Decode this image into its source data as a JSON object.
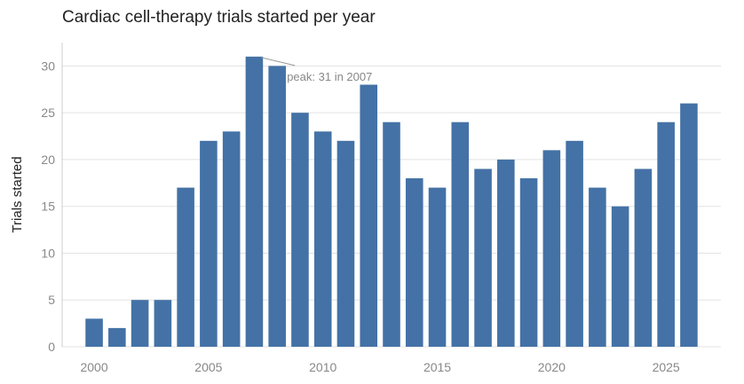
{
  "chart_data": {
    "type": "bar",
    "title": "Cardiac cell-therapy trials started per year",
    "xlabel": "",
    "ylabel": "Trials started",
    "x": [
      2000,
      2001,
      2002,
      2003,
      2004,
      2005,
      2006,
      2007,
      2008,
      2009,
      2010,
      2011,
      2012,
      2013,
      2014,
      2015,
      2016,
      2017,
      2018,
      2019,
      2020,
      2021,
      2022,
      2023,
      2024,
      2025,
      2026
    ],
    "values": [
      3,
      2,
      5,
      5,
      17,
      22,
      23,
      31,
      30,
      25,
      23,
      22,
      28,
      24,
      18,
      17,
      24,
      19,
      20,
      18,
      21,
      22,
      17,
      15,
      19,
      24,
      26
    ],
    "xticks": [
      2000,
      2005,
      2010,
      2015,
      2020,
      2025
    ],
    "yticks": [
      0,
      5,
      10,
      15,
      20,
      25,
      30
    ],
    "xlim": [
      1998.6,
      2027.4
    ],
    "ylim": [
      0,
      32.5
    ],
    "grid": "horizontal",
    "bar_color": "#4472a6",
    "annotation": {
      "text": "peak: 31 in 2007",
      "x": 2007,
      "y": 31
    }
  }
}
